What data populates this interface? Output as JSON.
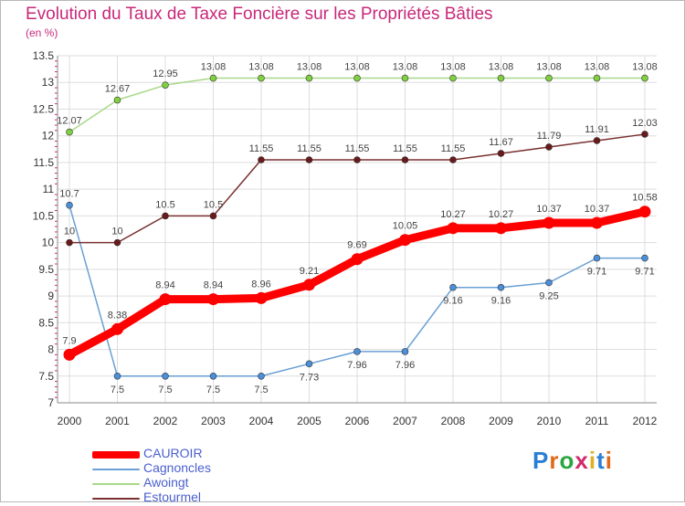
{
  "title": "Evolution du Taux de Taxe Foncière sur les Propriétés Bâties",
  "subtitle": "(en %)",
  "brand": {
    "letters": [
      "P",
      "r",
      "o",
      "x",
      "i",
      "t",
      "i"
    ],
    "colors": [
      "#2a7fd4",
      "#e06a1a",
      "#2aa640",
      "#d02a6a",
      "#e0b020",
      "#2a7fd4",
      "#e06a1a"
    ]
  },
  "chart_data": {
    "type": "line",
    "title": "Evolution du Taux de Taxe Foncière sur les Propriétés Bâties",
    "ylabel": "(en %)",
    "xlabel": "",
    "x": [
      "2000",
      "2001",
      "2002",
      "2003",
      "2004",
      "2005",
      "2006",
      "2007",
      "2008",
      "2009",
      "2010",
      "2011",
      "2012"
    ],
    "ylim": [
      7,
      13.5
    ],
    "yticks": [
      "7",
      "7.5",
      "8",
      "8.5",
      "9",
      "9.5",
      "10",
      "10.5",
      "11",
      "11.5",
      "12",
      "12.5",
      "13",
      "13.5"
    ],
    "grid": true,
    "legend_position": "bottom-left",
    "series": [
      {
        "name": "CAUROIR",
        "color": "#ff0000",
        "values": [
          7.9,
          8.38,
          8.94,
          8.94,
          8.96,
          9.21,
          9.69,
          10.05,
          10.27,
          10.27,
          10.37,
          10.37,
          10.58
        ],
        "labels": [
          "7.9",
          "8.38",
          "8.94",
          "8.94",
          "8.96",
          "9.21",
          "9.69",
          "10.05",
          "10.27",
          "10.27",
          "10.37",
          "10.37",
          "10.58"
        ],
        "bold": true,
        "labels_above": true
      },
      {
        "name": "Cagnoncles",
        "color": "#6a9fd4",
        "marker_color": "#4a8fd8",
        "values": [
          10.7,
          7.5,
          7.5,
          7.5,
          7.5,
          7.73,
          7.96,
          7.96,
          9.16,
          9.16,
          9.25,
          9.71,
          9.71
        ],
        "labels": [
          "10.7",
          "7.5",
          "7.5",
          "7.5",
          "7.5",
          "7.73",
          "7.96",
          "7.96",
          "9.16",
          "9.16",
          "9.25",
          "9.71",
          "9.71"
        ],
        "bold": false,
        "labels_above": [
          true,
          false,
          false,
          false,
          false,
          false,
          false,
          false,
          false,
          false,
          false,
          false,
          false
        ]
      },
      {
        "name": "Awoingt",
        "color": "#a8d888",
        "marker_color": "#80d040",
        "values": [
          12.07,
          12.67,
          12.95,
          13.08,
          13.08,
          13.08,
          13.08,
          13.08,
          13.08,
          13.08,
          13.08,
          13.08,
          13.08
        ],
        "labels": [
          "12.07",
          "12.67",
          "12.95",
          "13.08",
          "13.08",
          "13.08",
          "13.08",
          "13.08",
          "13.08",
          "13.08",
          "13.08",
          "13.08",
          "13.08"
        ],
        "bold": false,
        "labels_above": true
      },
      {
        "name": "Estourmel",
        "color": "#7a3030",
        "marker_color": "#6a1a1a",
        "values": [
          10,
          10,
          10.5,
          10.5,
          11.55,
          11.55,
          11.55,
          11.55,
          11.55,
          11.67,
          11.79,
          11.91,
          12.03
        ],
        "labels": [
          "10",
          "10",
          "10.5",
          "10.5",
          "11.55",
          "11.55",
          "11.55",
          "11.55",
          "11.55",
          "11.67",
          "11.79",
          "11.91",
          "12.03"
        ],
        "bold": false,
        "labels_above": true
      }
    ]
  }
}
